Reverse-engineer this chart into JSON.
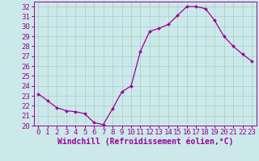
{
  "x": [
    0,
    1,
    2,
    3,
    4,
    5,
    6,
    7,
    8,
    9,
    10,
    11,
    12,
    13,
    14,
    15,
    16,
    17,
    18,
    19,
    20,
    21,
    22,
    23
  ],
  "y": [
    23.2,
    22.5,
    21.8,
    21.5,
    21.4,
    21.2,
    20.3,
    20.1,
    21.7,
    23.4,
    24.0,
    27.5,
    29.5,
    29.8,
    30.2,
    31.1,
    32.0,
    32.0,
    31.8,
    30.6,
    29.0,
    28.0,
    27.2,
    26.5
  ],
  "line_color": "#990099",
  "marker": "D",
  "marker_size": 2.0,
  "bg_color": "#cce9e9",
  "grid_color": "#aacccc",
  "xlabel": "Windchill (Refroidissement éolien,°C)",
  "xlim": [
    -0.5,
    23.5
  ],
  "ylim": [
    20,
    32.5
  ],
  "yticks": [
    20,
    21,
    22,
    23,
    24,
    25,
    26,
    27,
    28,
    29,
    30,
    31,
    32
  ],
  "xticks": [
    0,
    1,
    2,
    3,
    4,
    5,
    6,
    7,
    8,
    9,
    10,
    11,
    12,
    13,
    14,
    15,
    16,
    17,
    18,
    19,
    20,
    21,
    22,
    23
  ],
  "font_size": 6.5,
  "xlabel_fontsize": 7.0,
  "linewidth": 0.9
}
